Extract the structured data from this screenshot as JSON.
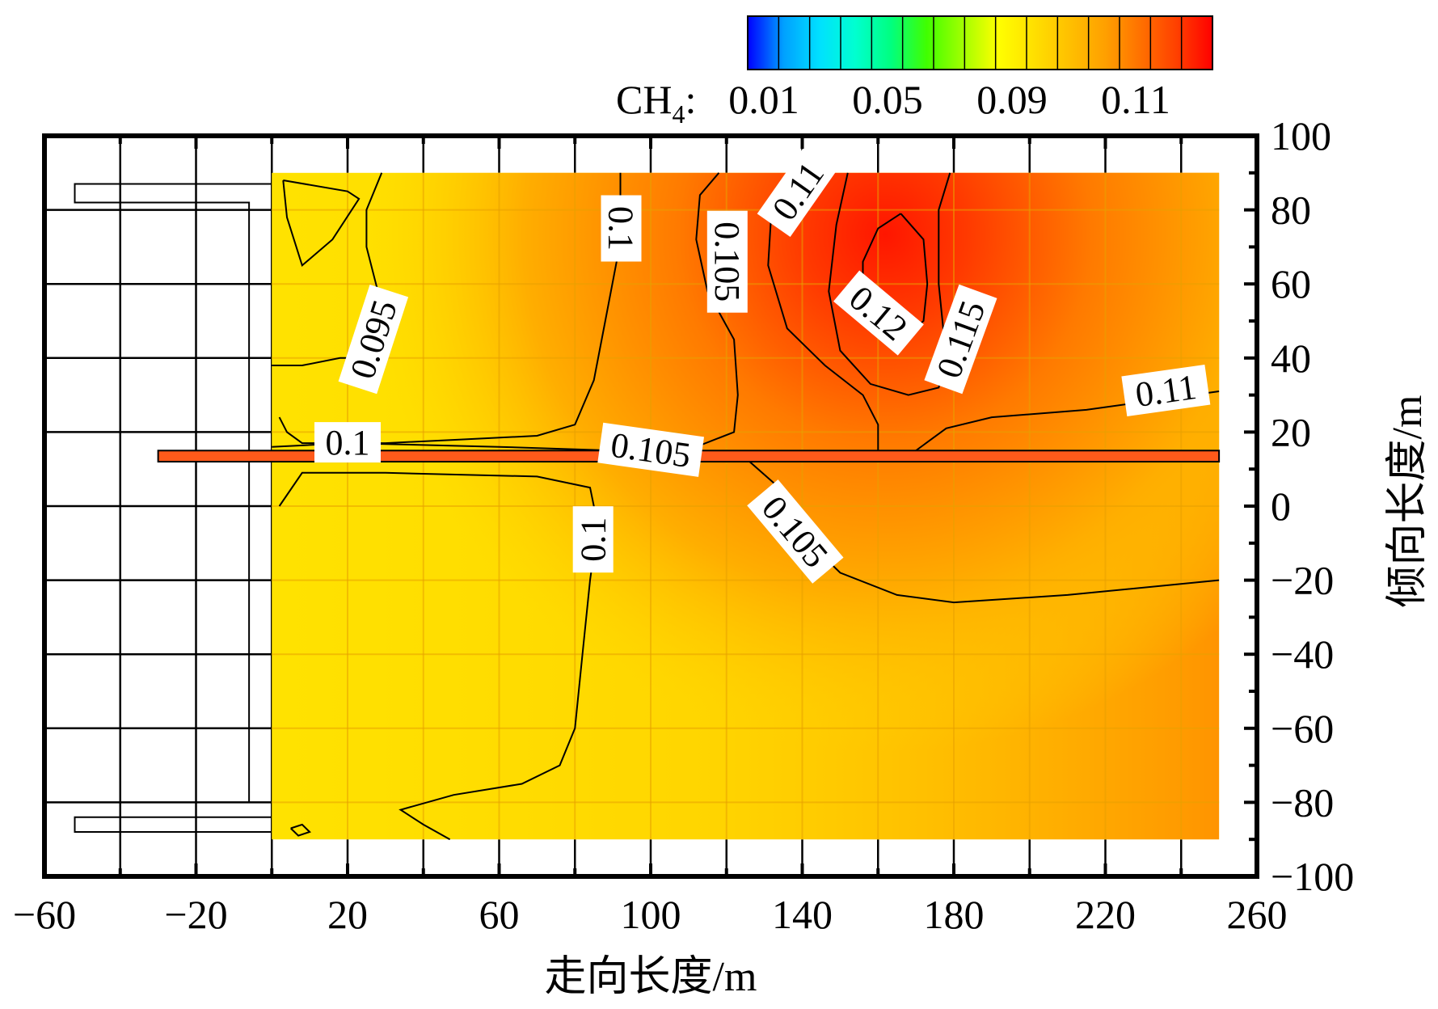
{
  "chart_data": {
    "type": "heatmap",
    "title": "",
    "xlabel": "走向长度/m",
    "ylabel": "倾向长度/m",
    "xlim": [
      -60,
      260
    ],
    "ylim": [
      -100,
      100
    ],
    "x_ticks": [
      -60,
      -20,
      20,
      60,
      100,
      140,
      180,
      220,
      260
    ],
    "x_tick_labels": [
      "−60",
      "−20",
      "20",
      "60",
      "100",
      "140",
      "180",
      "220",
      "260"
    ],
    "y_ticks": [
      100,
      80,
      60,
      40,
      20,
      0,
      -20,
      -40,
      -60,
      -80,
      -100
    ],
    "y_tick_labels": [
      "100",
      "80",
      "60",
      "40",
      "20",
      "0",
      "−20",
      "−40",
      "−60",
      "−80",
      "−100"
    ],
    "grid": true,
    "colorbar": {
      "label_prefix": "CH",
      "label_sub": "4",
      "label_suffix": ":",
      "tick_values": [
        0.01,
        0.05,
        0.09,
        0.11
      ],
      "tick_labels": [
        "0.01",
        "0.05",
        "0.09",
        "0.11"
      ],
      "colors": [
        "#0000ff",
        "#00a0ff",
        "#00e0ff",
        "#00ffd0",
        "#00ff80",
        "#40ff00",
        "#a0ff00",
        "#ffff00",
        "#ffe000",
        "#ffc000",
        "#ffa000",
        "#ff7000",
        "#ff4000",
        "#ff0000"
      ],
      "placement": "top-right"
    },
    "field": {
      "x_range": [
        0,
        250
      ],
      "y_range": [
        -90,
        90
      ],
      "base_color": "#ffe200",
      "peak_color": "#ff1a00"
    },
    "contour_levels": [
      {
        "value": 0.095,
        "label": "0.095"
      },
      {
        "value": 0.1,
        "label": "0.1"
      },
      {
        "value": 0.105,
        "label": "0.105"
      },
      {
        "value": 0.11,
        "label": "0.11"
      },
      {
        "value": 0.115,
        "label": "0.115"
      },
      {
        "value": 0.12,
        "label": "0.12"
      }
    ],
    "contour_labels": [
      {
        "text": "0.1",
        "x": 92,
        "y": 75,
        "angle": 90
      },
      {
        "text": "0.105",
        "x": 120,
        "y": 66,
        "angle": 90
      },
      {
        "text": "0.11",
        "x": 139,
        "y": 85,
        "angle": -55
      },
      {
        "text": "0.095",
        "x": 27,
        "y": 45,
        "angle": -72
      },
      {
        "text": "0.12",
        "x": 160,
        "y": 52,
        "angle": 40
      },
      {
        "text": "0.115",
        "x": 182,
        "y": 45,
        "angle": -70
      },
      {
        "text": "0.11",
        "x": 236,
        "y": 31,
        "angle": -8
      },
      {
        "text": "0.1",
        "x": 20,
        "y": 17,
        "angle": 0
      },
      {
        "text": "0.105",
        "x": 100,
        "y": 15,
        "angle": 8
      },
      {
        "text": "0.105",
        "x": 138,
        "y": -7,
        "angle": 50
      },
      {
        "text": "0.1",
        "x": 85,
        "y": -9,
        "angle": -90
      }
    ],
    "tunnel": {
      "x_range": [
        -30,
        250
      ],
      "y_range": [
        12,
        15
      ],
      "color": "#ff5a1a"
    }
  }
}
